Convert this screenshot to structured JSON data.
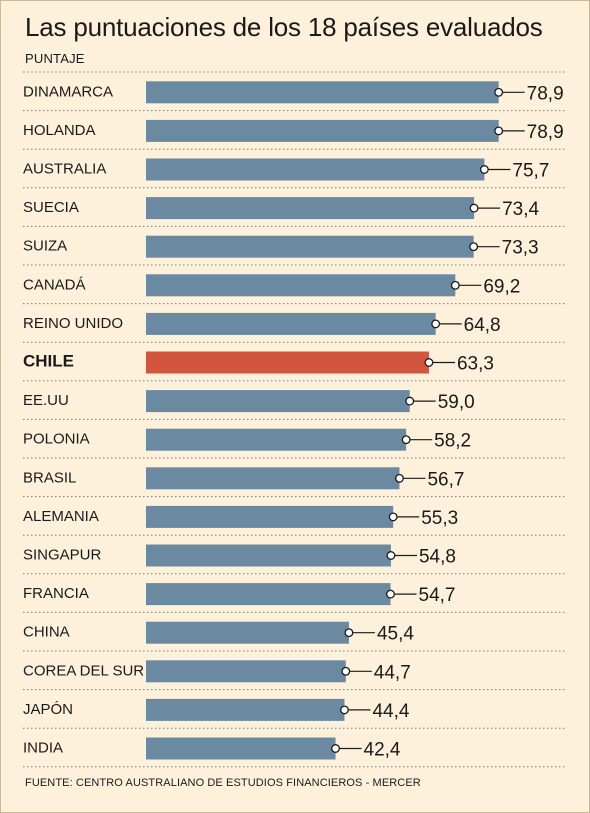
{
  "title": "Las puntuaciones de los 18 países evaluados",
  "ylabel": "PUNTAJE",
  "source": "FUENTE: CENTRO AUSTRALIANO DE ESTUDIOS FINANCIEROS - MERCER",
  "colors": {
    "bar": "#6b8aa1",
    "highlight": "#d2553f",
    "background": "#fdf1dc",
    "separator": "#7a7a7a"
  },
  "chart_data": {
    "type": "bar",
    "orientation": "horizontal",
    "title": "Las puntuaciones de los 18 países evaluados",
    "ylabel": "PUNTAJE",
    "highlight": "CHILE",
    "xlim": [
      0,
      85
    ],
    "categories": [
      "DINAMARCA",
      "HOLANDA",
      "AUSTRALIA",
      "SUECIA",
      "SUIZA",
      "CANADÁ",
      "REINO UNIDO",
      "CHILE",
      "EE.UU",
      "POLONIA",
      "BRASIL",
      "ALEMANIA",
      "SINGAPUR",
      "FRANCIA",
      "CHINA",
      "COREA DEL SUR",
      "JAPÓN",
      "INDIA"
    ],
    "values": [
      78.9,
      78.9,
      75.7,
      73.4,
      73.3,
      69.2,
      64.8,
      63.3,
      59.0,
      58.2,
      56.7,
      55.3,
      54.8,
      54.7,
      45.4,
      44.7,
      44.4,
      42.4
    ],
    "labels": [
      "78,9",
      "78,9",
      "75,7",
      "73,4",
      "73,3",
      "69,2",
      "64,8",
      "63,3",
      "59,0",
      "58,2",
      "56,7",
      "55,3",
      "54,8",
      "54,7",
      "45,4",
      "44,7",
      "44,4",
      "42,4"
    ]
  }
}
